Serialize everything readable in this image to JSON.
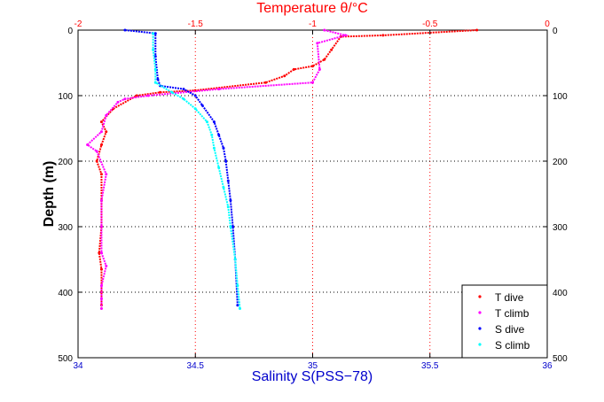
{
  "chart_data": {
    "type": "scatter",
    "title": "Temperature θ/°C",
    "xlabel": "Salinity S(PSS−78)",
    "ylabel": "Depth (m)",
    "bottom_axis": {
      "min": 34,
      "max": 36,
      "ticks": [
        34,
        34.5,
        35,
        35.5,
        36
      ],
      "tick_labels": [
        "34",
        "34.5",
        "35",
        "35.5",
        "36"
      ]
    },
    "top_axis": {
      "min": -2,
      "max": 0,
      "ticks": [
        -2,
        -1.5,
        -1,
        -0.5,
        0
      ],
      "tick_labels": [
        "-2",
        "-1.5",
        "-1",
        "-0.5",
        "0"
      ]
    },
    "y_axis": {
      "min": 0,
      "max": 500,
      "reversed": true,
      "ticks": [
        0,
        100,
        200,
        300,
        400,
        500
      ],
      "tick_labels": [
        "0",
        "100",
        "200",
        "300",
        "400",
        "500"
      ]
    },
    "grid": true,
    "legend_position": "bottom-right",
    "series": [
      {
        "name": "T dive",
        "axis": "top",
        "color": "#ff0000",
        "x": [
          -0.3,
          -0.7,
          -0.88,
          -0.92,
          -0.95,
          -1.0,
          -1.08,
          -1.12,
          -1.2,
          -1.5,
          -1.65,
          -1.75,
          -1.85,
          -1.9,
          -1.88,
          -1.9,
          -1.92,
          -1.9,
          -1.9,
          -1.9,
          -1.91,
          -1.9,
          -1.9,
          -1.9
        ],
        "y": [
          0,
          8,
          10,
          30,
          45,
          55,
          60,
          70,
          80,
          92,
          95,
          100,
          120,
          140,
          155,
          175,
          200,
          220,
          260,
          300,
          340,
          365,
          400,
          420
        ]
      },
      {
        "name": "T climb",
        "axis": "top",
        "color": "#ff00ff",
        "x": [
          -0.95,
          -0.86,
          -0.98,
          -0.97,
          -1.0,
          -1.4,
          -1.7,
          -1.8,
          -1.83,
          -1.88,
          -1.9,
          -1.96,
          -1.92,
          -1.88,
          -1.9,
          -1.9,
          -1.9,
          -1.88,
          -1.9,
          -1.9,
          -1.9
        ],
        "y": [
          0,
          8,
          20,
          60,
          80,
          90,
          100,
          105,
          110,
          130,
          155,
          175,
          185,
          220,
          260,
          300,
          340,
          360,
          390,
          410,
          425
        ]
      },
      {
        "name": "S dive",
        "axis": "bottom",
        "color": "#0000ff",
        "x": [
          34.2,
          34.33,
          34.33,
          34.34,
          34.35,
          34.45,
          34.5,
          34.53,
          34.58,
          34.6,
          34.62,
          34.63,
          34.64,
          34.65,
          34.66,
          34.67,
          34.68
        ],
        "y": [
          0,
          5,
          40,
          75,
          85,
          90,
          100,
          115,
          140,
          160,
          180,
          200,
          230,
          260,
          300,
          350,
          420
        ]
      },
      {
        "name": "S climb",
        "axis": "bottom",
        "color": "#00ffff",
        "x": [
          34.32,
          34.32,
          34.33,
          34.33,
          34.4,
          34.45,
          34.5,
          34.55,
          34.57,
          34.58,
          34.6,
          34.62,
          34.64,
          34.65,
          34.67,
          34.68,
          34.69
        ],
        "y": [
          5,
          30,
          60,
          80,
          95,
          105,
          120,
          140,
          160,
          180,
          210,
          240,
          270,
          300,
          350,
          390,
          425
        ]
      }
    ]
  }
}
